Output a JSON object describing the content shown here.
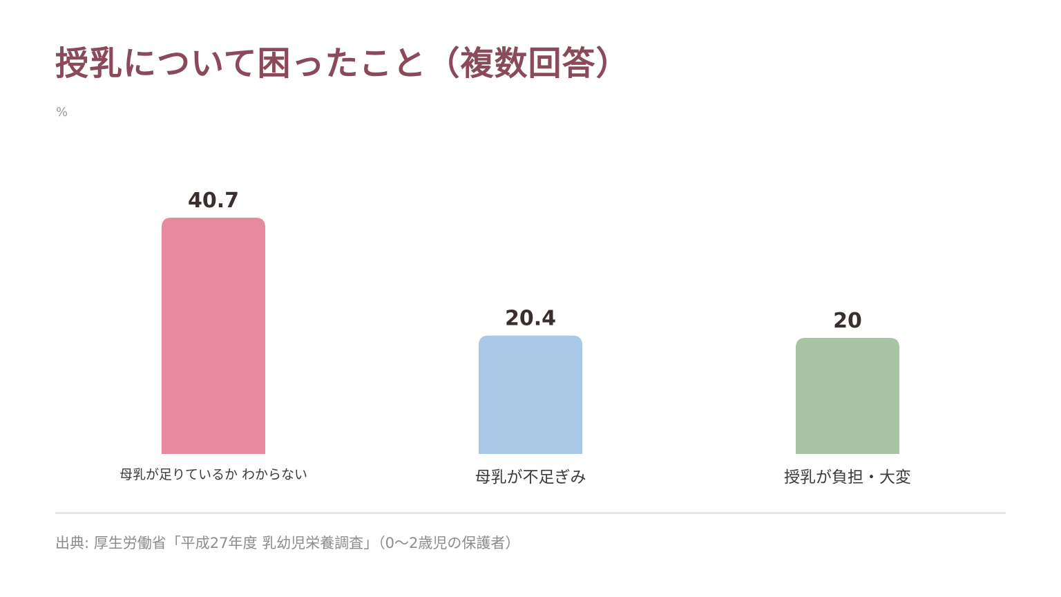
{
  "title": "授乳について困ったこと（複数回答）",
  "unit": "%",
  "source": "出典: 厚生労働省「平成27年度 乳幼児栄養調査」（0〜2歳児の保護者）",
  "chart_data": {
    "type": "bar",
    "categories": [
      "母乳が足りているか わからない",
      "母乳が不足ぎみ",
      "授乳が負担・大変"
    ],
    "values": [
      40.7,
      20.4,
      20
    ],
    "value_labels": [
      "40.7",
      "20.4",
      "20"
    ],
    "colors": [
      "#e78a9d",
      "#a8c8e6",
      "#a9c4a4"
    ],
    "value_label_color": "#3a2f2c",
    "category_label_color": "#3a3a3a",
    "grid": false,
    "legend": "none"
  }
}
